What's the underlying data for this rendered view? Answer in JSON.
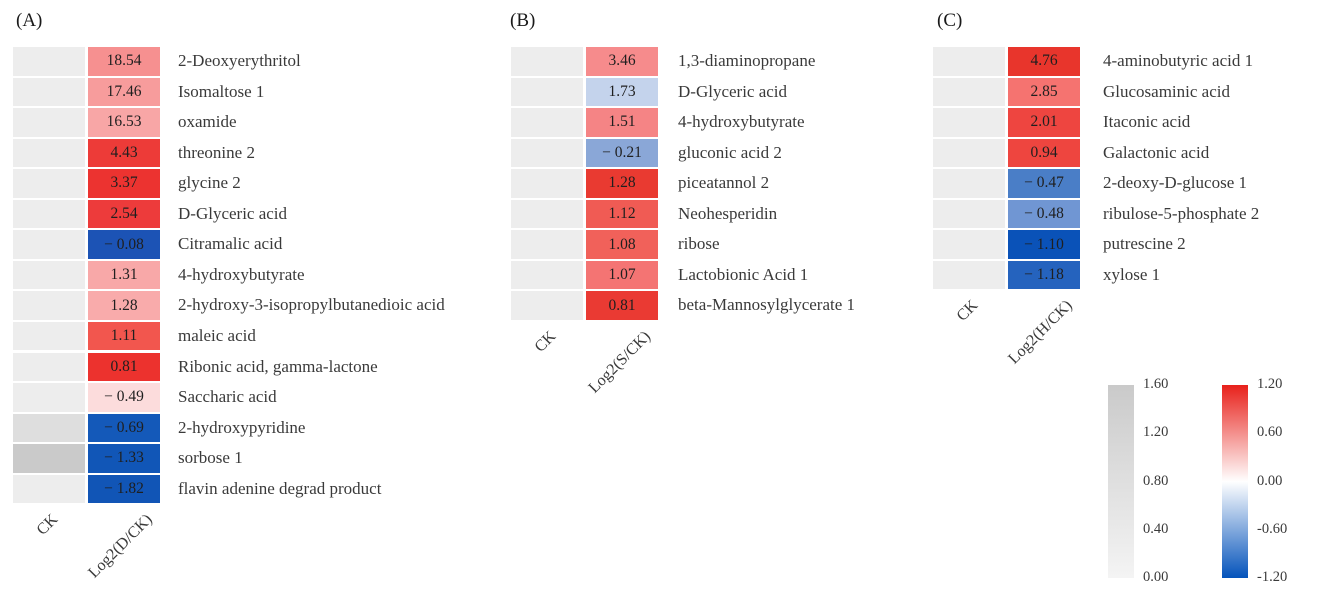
{
  "chart_data": [
    {
      "type": "heatmap",
      "label": "(A)",
      "x_labels": [
        "CK",
        "Log2(D/CK)"
      ],
      "rows": [
        {
          "name": "2-Deoxyerythritol",
          "value": 18.54,
          "display": "18.54",
          "ck_color": "#ededed",
          "cell_color": "#f69090"
        },
        {
          "name": "Isomaltose 1",
          "value": 17.46,
          "display": "17.46",
          "ck_color": "#ededed",
          "cell_color": "#f79c9c"
        },
        {
          "name": "oxamide",
          "value": 16.53,
          "display": "16.53",
          "ck_color": "#ededed",
          "cell_color": "#f8a6a6"
        },
        {
          "name": "threonine 2",
          "value": 4.43,
          "display": "4.43",
          "ck_color": "#ededed",
          "cell_color": "#ed3b38"
        },
        {
          "name": "glycine 2",
          "value": 3.37,
          "display": "3.37",
          "ck_color": "#ededed",
          "cell_color": "#ec3330"
        },
        {
          "name": "D-Glyceric acid",
          "value": 2.54,
          "display": "2.54",
          "ck_color": "#ededed",
          "cell_color": "#ed3b3b"
        },
        {
          "name": "Citramalic acid",
          "value": -0.08,
          "display": "− 0.08",
          "ck_color": "#ededed",
          "cell_color": "#1c53b5"
        },
        {
          "name": "4-hydroxybutyrate",
          "value": 1.31,
          "display": "1.31",
          "ck_color": "#ededed",
          "cell_color": "#f8a8a8"
        },
        {
          "name": "2-hydroxy-3-isopropylbutanedioic acid",
          "value": 1.28,
          "display": "1.28",
          "ck_color": "#ededed",
          "cell_color": "#f9abab"
        },
        {
          "name": "maleic acid",
          "value": 1.11,
          "display": "1.11",
          "ck_color": "#ededed",
          "cell_color": "#f2564e"
        },
        {
          "name": "Ribonic acid, gamma-lactone",
          "value": 0.81,
          "display": "0.81",
          "ck_color": "#ededed",
          "cell_color": "#ec322e"
        },
        {
          "name": "Saccharic acid",
          "value": -0.49,
          "display": "− 0.49",
          "ck_color": "#ededed",
          "cell_color": "#fcdcdc"
        },
        {
          "name": "2-hydroxypyridine",
          "value": -0.69,
          "display": "− 0.69",
          "ck_color": "#dedede",
          "cell_color": "#1459b9"
        },
        {
          "name": "sorbose 1",
          "value": -1.33,
          "display": "− 1.33",
          "ck_color": "#cacaca",
          "cell_color": "#1156b7"
        },
        {
          "name": "flavin adenine degrad product",
          "value": -1.82,
          "display": "− 1.82",
          "ck_color": "#ededed",
          "cell_color": "#1155b6"
        }
      ]
    },
    {
      "type": "heatmap",
      "label": "(B)",
      "x_labels": [
        "CK",
        "Log2(S/CK)"
      ],
      "rows": [
        {
          "name": "1,3-diaminopropane",
          "value": 3.46,
          "display": "3.46",
          "ck_color": "#ededed",
          "cell_color": "#f68b8c"
        },
        {
          "name": "D-Glyceric acid",
          "value": 1.73,
          "display": "1.73",
          "ck_color": "#ededed",
          "cell_color": "#c4d3ec"
        },
        {
          "name": "4-hydroxybutyrate",
          "value": 1.51,
          "display": "1.51",
          "ck_color": "#ededed",
          "cell_color": "#f58485"
        },
        {
          "name": "gluconic acid 2",
          "value": -0.21,
          "display": "− 0.21",
          "ck_color": "#ededed",
          "cell_color": "#8aa7d7"
        },
        {
          "name": "piceatannol 2",
          "value": 1.28,
          "display": "1.28",
          "ck_color": "#ededed",
          "cell_color": "#e93a31"
        },
        {
          "name": "Neohesperidin",
          "value": 1.12,
          "display": "1.12",
          "ck_color": "#ededed",
          "cell_color": "#f05b54"
        },
        {
          "name": "ribose",
          "value": 1.08,
          "display": "1.08",
          "ck_color": "#ededed",
          "cell_color": "#f1615a"
        },
        {
          "name": "Lactobionic Acid 1",
          "value": 1.07,
          "display": "1.07",
          "ck_color": "#ededed",
          "cell_color": "#f47473"
        },
        {
          "name": "beta-Mannosylglycerate 1",
          "value": 0.81,
          "display": "0.81",
          "ck_color": "#ededed",
          "cell_color": "#ea3a33"
        }
      ]
    },
    {
      "type": "heatmap",
      "label": "(C)",
      "x_labels": [
        "CK",
        "Log2(H/CK)"
      ],
      "rows": [
        {
          "name": "4-aminobutyric acid 1",
          "value": 4.76,
          "display": "4.76",
          "ck_color": "#ededed",
          "cell_color": "#e8352c"
        },
        {
          "name": "Glucosaminic acid",
          "value": 2.85,
          "display": "2.85",
          "ck_color": "#ededed",
          "cell_color": "#f57370"
        },
        {
          "name": "Itaconic acid",
          "value": 2.01,
          "display": "2.01",
          "ck_color": "#ededed",
          "cell_color": "#ee4540"
        },
        {
          "name": "Galactonic acid",
          "value": 0.94,
          "display": "0.94",
          "ck_color": "#ededed",
          "cell_color": "#ee453f"
        },
        {
          "name": "2-deoxy-D-glucose 1",
          "value": -0.47,
          "display": "− 0.47",
          "ck_color": "#ededed",
          "cell_color": "#4a7ec7"
        },
        {
          "name": "ribulose-5-phosphate 2",
          "value": -0.48,
          "display": "− 0.48",
          "ck_color": "#ededed",
          "cell_color": "#7096d3"
        },
        {
          "name": "putrescine 2",
          "value": -1.1,
          "display": "− 1.10",
          "ck_color": "#ededed",
          "cell_color": "#0a52b8"
        },
        {
          "name": "xylose 1",
          "value": -1.18,
          "display": "− 1.18",
          "ck_color": "#ededed",
          "cell_color": "#2563be"
        }
      ]
    }
  ],
  "legends": {
    "gray": {
      "ticks": [
        "1.60",
        "1.20",
        "0.80",
        "0.40",
        "0.00"
      ],
      "range": [
        0.0,
        1.6
      ],
      "top_color": "#cacaca",
      "bottom_color": "#f4f4f4"
    },
    "diverging": {
      "ticks": [
        "1.20",
        "0.60",
        "0.00",
        "-0.60",
        "-1.20"
      ],
      "range": [
        -1.2,
        1.2
      ],
      "top_color": "#e8211b",
      "mid_color": "#ffffff",
      "bottom_color": "#0453bb"
    }
  }
}
